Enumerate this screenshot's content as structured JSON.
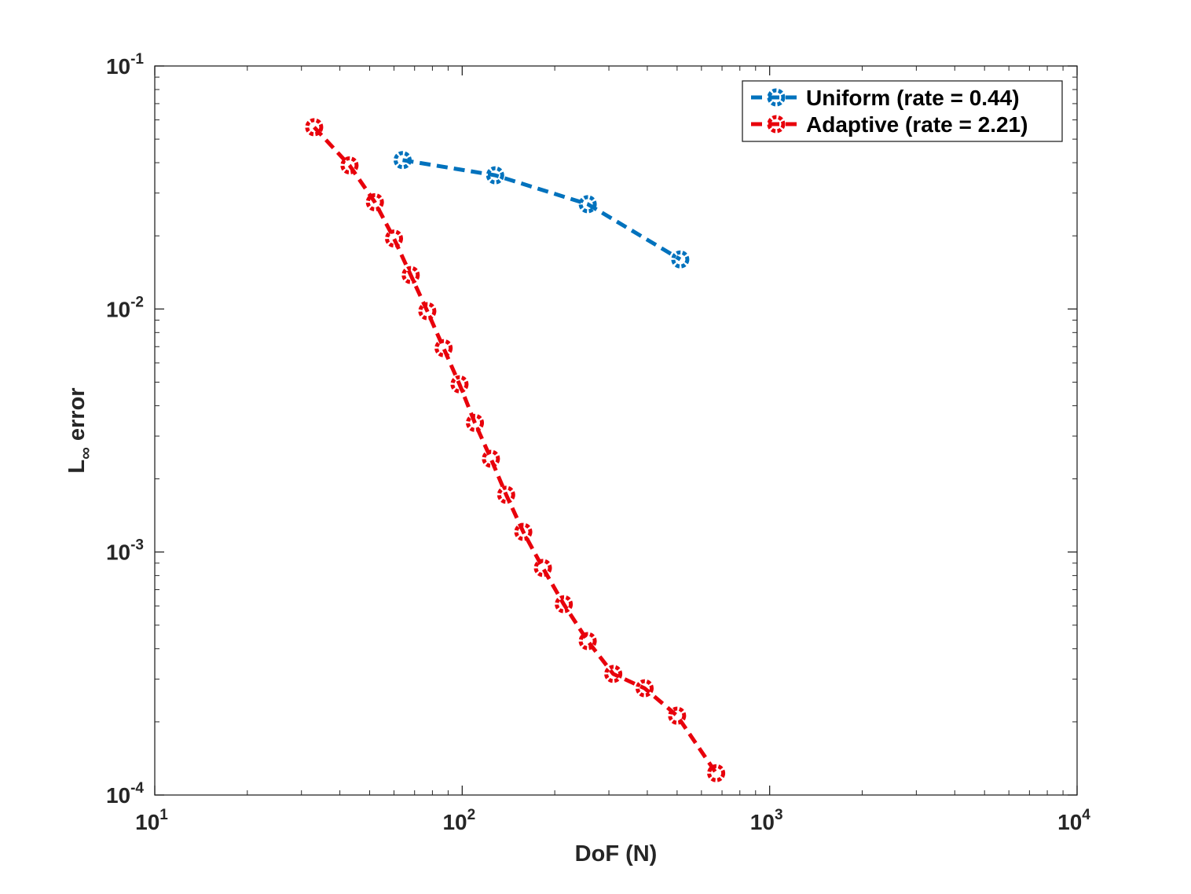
{
  "chart_data": {
    "type": "line",
    "xlabel": "DoF (N)",
    "ylabel_main": "L",
    "ylabel_sub": "∞",
    "ylabel_rest": " error",
    "xscale": "log",
    "yscale": "log",
    "xlim": [
      10,
      10000
    ],
    "ylim": [
      0.0001,
      0.1
    ],
    "grid": false,
    "legend_position": "top-right",
    "x_ticks": [
      {
        "base": "10",
        "exp": "1"
      },
      {
        "base": "10",
        "exp": "2"
      },
      {
        "base": "10",
        "exp": "3"
      },
      {
        "base": "10",
        "exp": "4"
      }
    ],
    "y_ticks": [
      {
        "base": "10",
        "exp": "-4"
      },
      {
        "base": "10",
        "exp": "-3"
      },
      {
        "base": "10",
        "exp": "-2"
      },
      {
        "base": "10",
        "exp": "-1"
      }
    ],
    "series": [
      {
        "name": "Uniform (rate = 0.44)",
        "color": "#0072BD",
        "x": [
          64,
          128,
          256,
          512
        ],
        "y": [
          0.041,
          0.0355,
          0.027,
          0.016
        ]
      },
      {
        "name": "Adaptive (rate = 2.21)",
        "color": "#E8000B",
        "x": [
          33,
          43,
          52,
          60,
          68,
          77,
          87,
          98,
          110,
          124,
          139,
          158,
          183,
          214,
          256,
          310,
          392,
          500,
          670
        ],
        "y": [
          0.056,
          0.039,
          0.0275,
          0.0195,
          0.0138,
          0.0098,
          0.0069,
          0.0049,
          0.0034,
          0.00242,
          0.00172,
          0.00121,
          0.00086,
          0.00061,
          0.00043,
          0.000315,
          0.000275,
          0.000212,
          0.000123
        ]
      }
    ]
  }
}
